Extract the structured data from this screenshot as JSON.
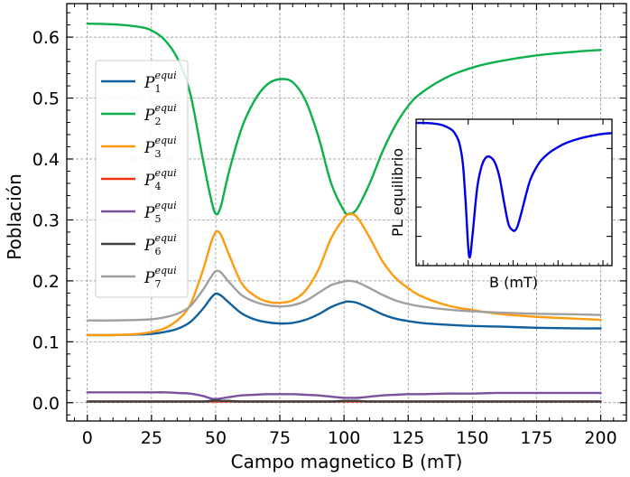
{
  "chart_data": [
    {
      "type": "line",
      "title": "",
      "xlabel": "Campo magnetico B (mT)",
      "ylabel": "Población",
      "xlim": [
        -8,
        210
      ],
      "ylim": [
        -0.03,
        0.655
      ],
      "xticks": [
        0,
        25,
        50,
        75,
        100,
        125,
        150,
        175,
        200
      ],
      "yticks": [
        0.0,
        0.1,
        0.2,
        0.3,
        0.4,
        0.5,
        0.6
      ],
      "xtick_labels": [
        "0",
        "25",
        "50",
        "75",
        "100",
        "125",
        "150",
        "175",
        "200"
      ],
      "ytick_labels": [
        "0.0",
        "0.1",
        "0.2",
        "0.3",
        "0.4",
        "0.5",
        "0.6"
      ],
      "grid": true,
      "legend_position": "upper-left",
      "x": [
        0,
        10,
        20,
        25,
        30,
        35,
        40,
        45,
        48,
        50,
        52,
        55,
        60,
        65,
        70,
        75,
        80,
        85,
        90,
        95,
        100,
        102,
        105,
        110,
        115,
        120,
        125,
        130,
        140,
        150,
        160,
        175,
        190,
        200
      ],
      "series": [
        {
          "name": "P_1^{equi}",
          "base": "P",
          "sub": "1",
          "sup": "equi",
          "color": "#1060a0",
          "values": [
            0.111,
            0.111,
            0.112,
            0.113,
            0.116,
            0.121,
            0.132,
            0.154,
            0.171,
            0.179,
            0.176,
            0.165,
            0.147,
            0.137,
            0.132,
            0.13,
            0.131,
            0.136,
            0.145,
            0.157,
            0.165,
            0.166,
            0.164,
            0.155,
            0.145,
            0.138,
            0.134,
            0.131,
            0.128,
            0.126,
            0.125,
            0.123,
            0.122,
            0.122
          ]
        },
        {
          "name": "P_2^{equi}",
          "base": "P",
          "sub": "2",
          "sup": "equi",
          "color": "#0db04a",
          "values": [
            0.622,
            0.621,
            0.617,
            0.611,
            0.596,
            0.566,
            0.509,
            0.4,
            0.338,
            0.31,
            0.322,
            0.376,
            0.449,
            0.495,
            0.522,
            0.531,
            0.526,
            0.496,
            0.437,
            0.36,
            0.315,
            0.31,
            0.318,
            0.36,
            0.412,
            0.455,
            0.487,
            0.508,
            0.534,
            0.55,
            0.56,
            0.57,
            0.576,
            0.579
          ]
        },
        {
          "name": "P_3^{equi}",
          "base": "P",
          "sub": "3",
          "sup": "equi",
          "color": "#ff9b0d",
          "values": [
            0.111,
            0.111,
            0.113,
            0.116,
            0.122,
            0.135,
            0.16,
            0.217,
            0.26,
            0.28,
            0.276,
            0.245,
            0.197,
            0.176,
            0.166,
            0.164,
            0.168,
            0.184,
            0.218,
            0.27,
            0.303,
            0.309,
            0.305,
            0.271,
            0.232,
            0.205,
            0.188,
            0.175,
            0.16,
            0.152,
            0.146,
            0.141,
            0.138,
            0.136
          ]
        },
        {
          "name": "P_4^{equi}",
          "base": "P",
          "sub": "4",
          "sup": "equi",
          "color": "#f03412",
          "values": [
            0.002,
            0.002,
            0.002,
            0.002,
            0.002,
            0.002,
            0.002,
            0.002,
            0.002,
            0.002,
            0.002,
            0.002,
            0.002,
            0.002,
            0.002,
            0.002,
            0.002,
            0.002,
            0.002,
            0.002,
            0.002,
            0.002,
            0.002,
            0.002,
            0.002,
            0.002,
            0.002,
            0.002,
            0.002,
            0.002,
            0.002,
            0.002,
            0.002,
            0.002
          ]
        },
        {
          "name": "P_5^{equi}",
          "base": "P",
          "sub": "5",
          "sup": "equi",
          "color": "#7b52a0",
          "values": [
            0.017,
            0.017,
            0.017,
            0.017,
            0.017,
            0.016,
            0.015,
            0.011,
            0.007,
            0.006,
            0.007,
            0.009,
            0.012,
            0.013,
            0.014,
            0.014,
            0.014,
            0.013,
            0.012,
            0.01,
            0.008,
            0.008,
            0.008,
            0.01,
            0.012,
            0.013,
            0.014,
            0.014,
            0.015,
            0.015,
            0.016,
            0.016,
            0.016,
            0.016
          ]
        },
        {
          "name": "P_6^{equi}",
          "base": "P",
          "sub": "6",
          "sup": "equi",
          "color": "#404040",
          "values": [
            0.002,
            0.002,
            0.002,
            0.002,
            0.002,
            0.002,
            0.002,
            0.002,
            0.003,
            0.004,
            0.003,
            0.003,
            0.002,
            0.002,
            0.002,
            0.002,
            0.002,
            0.002,
            0.002,
            0.002,
            0.003,
            0.003,
            0.003,
            0.002,
            0.002,
            0.002,
            0.002,
            0.002,
            0.002,
            0.002,
            0.002,
            0.002,
            0.002,
            0.002
          ]
        },
        {
          "name": "P_7^{equi}",
          "base": "P",
          "sub": "7",
          "sup": "equi",
          "color": "#a0a0a0",
          "values": [
            0.135,
            0.135,
            0.136,
            0.137,
            0.14,
            0.146,
            0.158,
            0.185,
            0.205,
            0.216,
            0.214,
            0.199,
            0.177,
            0.166,
            0.16,
            0.158,
            0.16,
            0.167,
            0.18,
            0.193,
            0.199,
            0.2,
            0.198,
            0.188,
            0.177,
            0.168,
            0.162,
            0.158,
            0.153,
            0.15,
            0.148,
            0.146,
            0.145,
            0.144
          ]
        }
      ]
    },
    {
      "type": "line",
      "title": "",
      "xlabel": "B (mT)",
      "ylabel": "PL equilibrio",
      "xlim": [
        -8,
        210
      ],
      "ylim": [
        0.0,
        1.0
      ],
      "grid": false,
      "tick_labels": false,
      "x": [
        -8,
        0,
        10,
        20,
        30,
        35,
        40,
        44,
        47,
        50,
        52,
        55,
        60,
        65,
        70,
        75,
        80,
        85,
        90,
        95,
        100,
        102,
        105,
        110,
        115,
        120,
        130,
        140,
        150,
        160,
        175,
        190,
        200,
        210
      ],
      "series": [
        {
          "name": "",
          "color": "#0000e6",
          "values": [
            0.975,
            0.975,
            0.972,
            0.962,
            0.935,
            0.905,
            0.84,
            0.7,
            0.45,
            0.13,
            0.06,
            0.22,
            0.53,
            0.68,
            0.74,
            0.74,
            0.7,
            0.6,
            0.43,
            0.28,
            0.24,
            0.24,
            0.27,
            0.38,
            0.5,
            0.6,
            0.71,
            0.77,
            0.81,
            0.84,
            0.87,
            0.89,
            0.9,
            0.905
          ]
        }
      ]
    }
  ]
}
